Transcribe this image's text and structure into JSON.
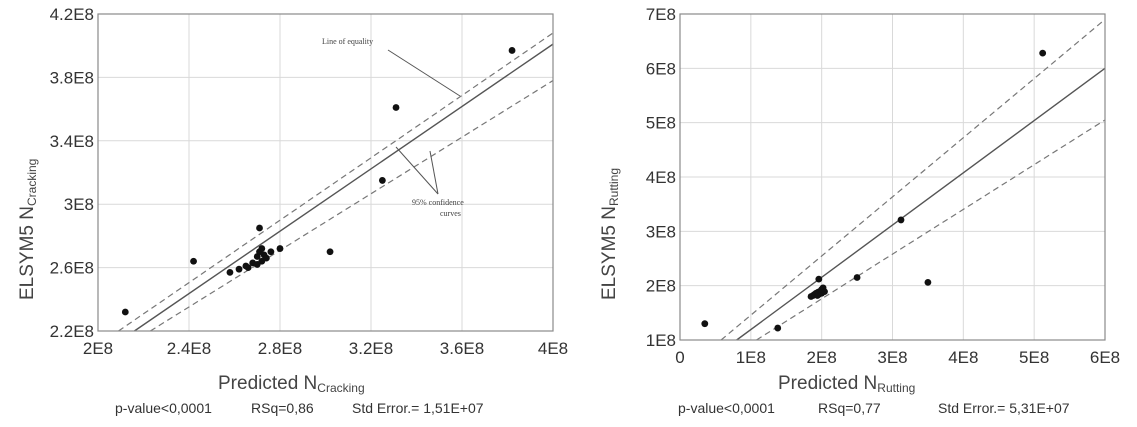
{
  "chart_data": [
    {
      "id": "cracking",
      "type": "scatter",
      "xlabel_main": "Predicted N",
      "xlabel_sub": "Cracking",
      "ylabel_main": "ELSYM5 N",
      "ylabel_sub": "Cracking",
      "xlim": [
        200000000,
        400000000
      ],
      "ylim": [
        220000000,
        420000000
      ],
      "x_ticks": [
        200000000,
        240000000,
        280000000,
        320000000,
        360000000,
        400000000
      ],
      "x_tick_labels": [
        "2E8",
        "2.4E8",
        "2.8E8",
        "3.2E8",
        "3.6E8",
        "4E8"
      ],
      "y_ticks": [
        220000000,
        260000000,
        300000000,
        340000000,
        380000000,
        420000000
      ],
      "y_tick_labels": [
        "2.2E8",
        "2.6E8",
        "3E8",
        "3.4E8",
        "3.8E8",
        "4.2E8"
      ],
      "grid": true,
      "points": [
        {
          "x": 212000000,
          "y": 232000000
        },
        {
          "x": 242000000,
          "y": 264000000
        },
        {
          "x": 258000000,
          "y": 257000000
        },
        {
          "x": 262000000,
          "y": 259000000
        },
        {
          "x": 265000000,
          "y": 261000000
        },
        {
          "x": 266000000,
          "y": 260000000
        },
        {
          "x": 268000000,
          "y": 263000000
        },
        {
          "x": 270000000,
          "y": 262000000
        },
        {
          "x": 270000000,
          "y": 267000000
        },
        {
          "x": 271000000,
          "y": 270000000
        },
        {
          "x": 271000000,
          "y": 285000000
        },
        {
          "x": 272000000,
          "y": 264000000
        },
        {
          "x": 272000000,
          "y": 272000000
        },
        {
          "x": 273000000,
          "y": 268000000
        },
        {
          "x": 274000000,
          "y": 266000000
        },
        {
          "x": 276000000,
          "y": 270000000
        },
        {
          "x": 280000000,
          "y": 272000000
        },
        {
          "x": 302000000,
          "y": 270000000
        },
        {
          "x": 325000000,
          "y": 315000000
        },
        {
          "x": 331000000,
          "y": 361000000
        },
        {
          "x": 382000000,
          "y": 397000000
        }
      ],
      "fit_line": [
        [
          216000000,
          220000000
        ],
        [
          400000000,
          401000000
        ]
      ],
      "conf_upper": [
        [
          209000000,
          220000000
        ],
        [
          400000000,
          408000000
        ]
      ],
      "conf_lower": [
        [
          223000000,
          220000000
        ],
        [
          400000000,
          378000000
        ]
      ],
      "annotations": [
        "Line of equality",
        "95% confidence curves"
      ],
      "stats": {
        "p_value": "p-value<0,0001",
        "rsq": "RSq=0,86",
        "std_error": "Std Error.= 1,51E+07"
      }
    },
    {
      "id": "rutting",
      "type": "scatter",
      "xlabel_main": "Predicted N",
      "xlabel_sub": "Rutting",
      "ylabel_main": "ELSYM5 N",
      "ylabel_sub": "Rutting",
      "xlim": [
        0,
        600000000
      ],
      "ylim": [
        100000000,
        700000000
      ],
      "x_ticks": [
        0,
        100000000,
        200000000,
        300000000,
        400000000,
        500000000,
        600000000
      ],
      "x_tick_labels": [
        "0",
        "1E8",
        "2E8",
        "3E8",
        "4E8",
        "5E8",
        "6E8"
      ],
      "y_ticks": [
        100000000,
        200000000,
        300000000,
        400000000,
        500000000,
        600000000,
        700000000
      ],
      "y_tick_labels": [
        "1E8",
        "2E8",
        "3E8",
        "4E8",
        "5E8",
        "6E8",
        "7E8"
      ],
      "grid": true,
      "points": [
        {
          "x": 35000000,
          "y": 130000000
        },
        {
          "x": 138000000,
          "y": 122000000
        },
        {
          "x": 185000000,
          "y": 180000000
        },
        {
          "x": 188000000,
          "y": 182000000
        },
        {
          "x": 190000000,
          "y": 184000000
        },
        {
          "x": 192000000,
          "y": 186000000
        },
        {
          "x": 194000000,
          "y": 182000000
        },
        {
          "x": 195000000,
          "y": 188000000
        },
        {
          "x": 196000000,
          "y": 184000000
        },
        {
          "x": 198000000,
          "y": 190000000
        },
        {
          "x": 200000000,
          "y": 186000000
        },
        {
          "x": 200000000,
          "y": 193000000
        },
        {
          "x": 202000000,
          "y": 196000000
        },
        {
          "x": 204000000,
          "y": 189000000
        },
        {
          "x": 196000000,
          "y": 212000000
        },
        {
          "x": 250000000,
          "y": 215000000
        },
        {
          "x": 312000000,
          "y": 321000000
        },
        {
          "x": 350000000,
          "y": 206000000
        },
        {
          "x": 512000000,
          "y": 628000000
        }
      ],
      "fit_line": [
        [
          80000000,
          100000000
        ],
        [
          600000000,
          600000000
        ]
      ],
      "conf_upper": [
        [
          58000000,
          100000000
        ],
        [
          600000000,
          690000000
        ]
      ],
      "conf_lower": [
        [
          108000000,
          100000000
        ],
        [
          600000000,
          505000000
        ]
      ],
      "stats": {
        "p_value": "p-value<0,0001",
        "rsq": "RSq=0,77",
        "std_error": "Std Error.= 5,31E+07"
      }
    }
  ]
}
